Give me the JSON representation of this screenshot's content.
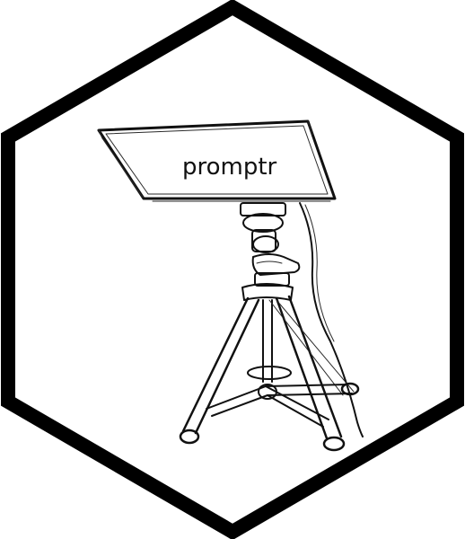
{
  "logo": {
    "wordmark": "promptr",
    "illustration": "teleprompter-on-tripod",
    "border_color": "#000000",
    "background_color": "#ffffff",
    "line_color": "#111111"
  }
}
